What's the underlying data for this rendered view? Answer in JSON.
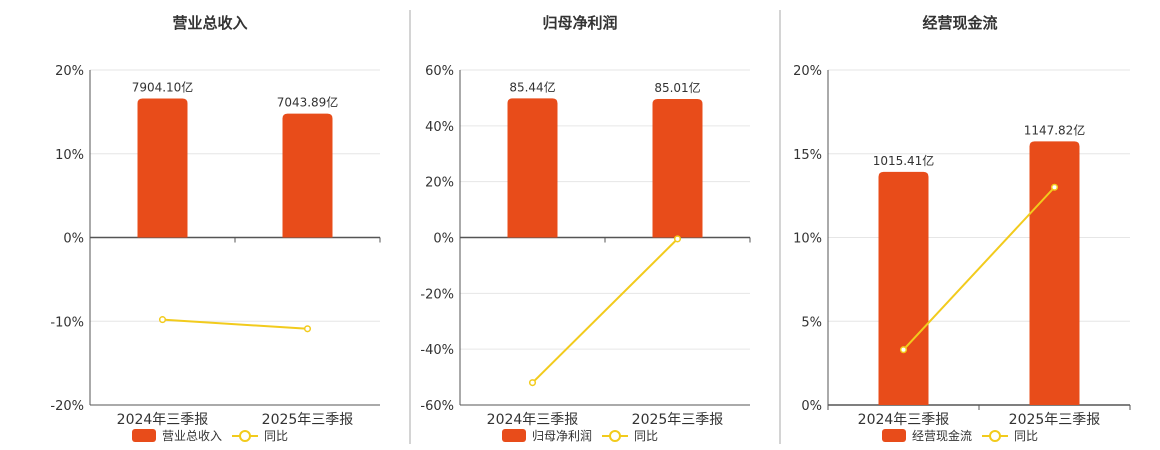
{
  "colors": {
    "bar": "#e84c1a",
    "line": "#f2cb1d",
    "grid": "#e6e6e6",
    "axis": "#555555",
    "divider": "#aaaaaa"
  },
  "chart_data": [
    {
      "type": "bar",
      "title": "营业总收入",
      "categories": [
        "2024年三季报",
        "2025年三季报"
      ],
      "bar_series": {
        "name": "营业总收入",
        "values": [
          7904.1,
          7043.89
        ],
        "labels": [
          "7904.10亿",
          "7043.89亿"
        ]
      },
      "line_series": {
        "name": "同比",
        "values": [
          -9.8,
          -10.9
        ]
      },
      "ylim": [
        -20,
        20
      ],
      "yticks": [
        -20,
        -10,
        0,
        10,
        20
      ],
      "ytick_labels": [
        "-20%",
        "-10%",
        "0%",
        "10%",
        "20%"
      ],
      "bar_scale_max": 8100,
      "bar_axis_value": 0,
      "grid": true,
      "legend": "bottom"
    },
    {
      "type": "bar",
      "title": "归母净利润",
      "categories": [
        "2024年三季报",
        "2025年三季报"
      ],
      "bar_series": {
        "name": "归母净利润",
        "values": [
          85.44,
          85.01
        ],
        "labels": [
          "85.44亿",
          "85.01亿"
        ]
      },
      "line_series": {
        "name": "同比",
        "values": [
          -52.0,
          -0.5
        ]
      },
      "ylim": [
        -60,
        60
      ],
      "yticks": [
        -60,
        -40,
        -20,
        0,
        20,
        40,
        60
      ],
      "ytick_labels": [
        "-60%",
        "-40%",
        "-20%",
        "0%",
        "20%",
        "40%",
        "60%"
      ],
      "bar_scale_max": 87.5,
      "bar_axis_value": 0,
      "grid": true,
      "legend": "bottom"
    },
    {
      "type": "bar",
      "title": "经营现金流",
      "categories": [
        "2024年三季报",
        "2025年三季报"
      ],
      "bar_series": {
        "name": "经营现金流",
        "values": [
          1015.41,
          1147.82
        ],
        "labels": [
          "1015.41亿",
          "1147.82亿"
        ]
      },
      "line_series": {
        "name": "同比",
        "values": [
          3.3,
          13.0
        ]
      },
      "ylim": [
        0,
        20
      ],
      "yticks": [
        0,
        5,
        10,
        15,
        20
      ],
      "ytick_labels": [
        "0%",
        "5%",
        "10%",
        "15%",
        "20%"
      ],
      "bar_scale_max": 1350,
      "bar_axis_value": 0,
      "grid": true,
      "legend": "bottom"
    }
  ]
}
